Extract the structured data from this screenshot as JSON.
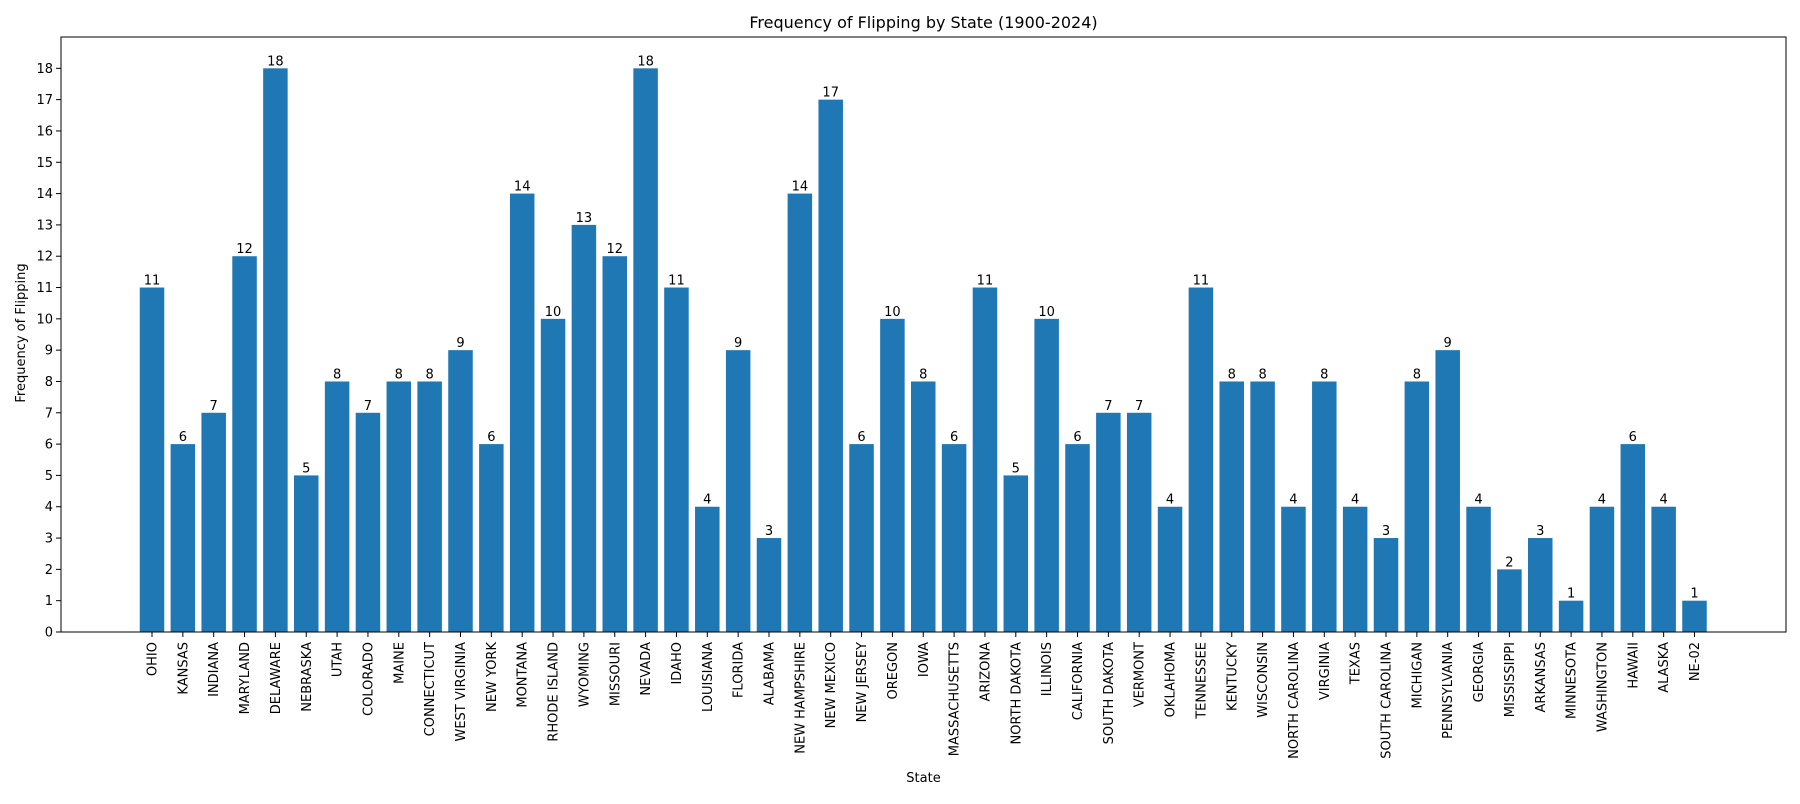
{
  "chart_data": {
    "type": "bar",
    "title": "Frequency of Flipping by State (1900-2024)",
    "xlabel": "State",
    "ylabel": "Frequency of Flipping",
    "ylim": [
      0,
      19
    ],
    "yticks": [
      0,
      1,
      2,
      3,
      4,
      5,
      6,
      7,
      8,
      9,
      10,
      11,
      12,
      13,
      14,
      15,
      16,
      17,
      18
    ],
    "grid": false,
    "legend": "none",
    "bar_color": "#1f77b4",
    "categories": [
      "OHIO",
      "KANSAS",
      "INDIANA",
      "MARYLAND",
      "DELAWARE",
      "NEBRASKA",
      "UTAH",
      "COLORADO",
      "MAINE",
      "CONNECTICUT",
      "WEST VIRGINIA",
      "NEW YORK",
      "MONTANA",
      "RHODE ISLAND",
      "WYOMING",
      "MISSOURI",
      "NEVADA",
      "IDAHO",
      "LOUISIANA",
      "FLORIDA",
      "ALABAMA",
      "NEW HAMPSHIRE",
      "NEW MEXICO",
      "NEW JERSEY",
      "OREGON",
      "IOWA",
      "MASSACHUSETTS",
      "ARIZONA",
      "NORTH DAKOTA",
      "ILLINOIS",
      "CALIFORNIA",
      "SOUTH DAKOTA",
      "VERMONT",
      "OKLAHOMA",
      "TENNESSEE",
      "KENTUCKY",
      "WISCONSIN",
      "NORTH CAROLINA",
      "VIRGINIA",
      "TEXAS",
      "SOUTH CAROLINA",
      "MICHIGAN",
      "PENNSYLVANIA",
      "GEORGIA",
      "MISSISSIPPI",
      "ARKANSAS",
      "MINNESOTA",
      "WASHINGTON",
      "HAWAII",
      "ALASKA",
      "NE-02"
    ],
    "values": [
      11,
      6,
      7,
      12,
      18,
      5,
      8,
      7,
      8,
      8,
      9,
      6,
      14,
      10,
      13,
      12,
      18,
      11,
      4,
      9,
      3,
      14,
      17,
      6,
      10,
      8,
      6,
      11,
      5,
      10,
      6,
      7,
      7,
      4,
      11,
      8,
      8,
      4,
      8,
      4,
      3,
      8,
      9,
      4,
      2,
      3,
      1,
      4,
      6,
      4,
      1
    ]
  }
}
